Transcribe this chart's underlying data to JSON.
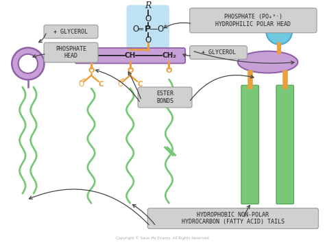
{
  "purple_light": "#c8a0d8",
  "purple_mid": "#9060a8",
  "green_tail": "#78c878",
  "green_dark": "#50a050",
  "orange_bond": "#e8a040",
  "blue_head": "#70c8e0",
  "blue_phosphate": "#a8d8f0",
  "text_color": "#222222",
  "box_bg": "#d0d0d0",
  "box_edge": "#999999",
  "title_text": "PHOSPHATE (PO₄³⁻)\nHYDROPHILIC POLAR HEAD",
  "glycerol_label": "+ GLYCEROL",
  "phosphate_head_label": "PHOSPHATE\nHEAD",
  "glycerol2_label": "+ GLYCEROL",
  "ester_bonds_label": "ESTER\nBONDS",
  "tail_label": "HYDROPHOBIC NON-POLAR\nHYDROCARBON (FATTY ACID) TAILS",
  "copyright": "Copyright © Save My Exams. All Rights Reserved"
}
